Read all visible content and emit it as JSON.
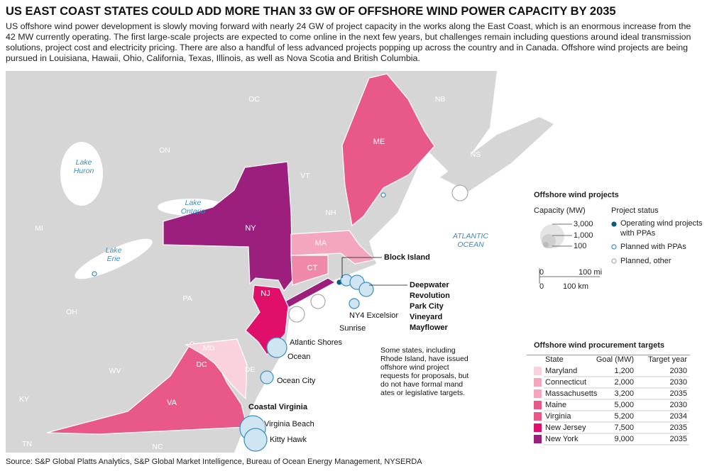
{
  "header": {
    "title": "US EAST COAST STATES COULD ADD MORE THAN 33 GW OF OFFSHORE WIND POWER CAPACITY BY 2035",
    "description": "US offshore wind power development is slowly moving forward with nearly 24 GW of project capacity in the works along the East Coast, which is an enormous increase from the 42 MW currently operating. The first large-scale projects are expected to come online in the next few years, but challenges remain including questions around ideal transmission solutions, project cost and electricity pricing. There are also a handful of less advanced projects popping up across the country and in Canada. Offshore wind projects are being pursued in Louisiana, Hawaii, Ohio, California, Texas, Illinois, as well as Nova Scotia and British Columbia."
  },
  "map_labels": [
    "OC",
    "ON",
    "NB",
    "NS",
    "Lake Huron",
    "Lake Ontario",
    "Lake Erie",
    "MI",
    "VT",
    "NH",
    "ME",
    "NY",
    "MA",
    "CT",
    "NJ",
    "PA",
    "OH",
    "MD",
    "DE",
    "DC",
    "WV",
    "VA",
    "KY",
    "TN",
    "NC",
    "ATLANTIC OCEAN"
  ],
  "projects": [
    "Block Island",
    "Deepwater",
    "Revolution",
    "Park City",
    "Vineyard",
    "Mayflower",
    "NY4 Excelsior",
    "Sunrise",
    "Atlantic Shores",
    "Ocean",
    "Ocean City",
    "Coastal Virginia",
    "Virginia Beach",
    "Kitty Hawk"
  ],
  "note": "Some states, including Rhode Island, have issued offshore wind project requests for proposals, but do not have formal mandates or legislative targets.",
  "legend": {
    "title": "Offshore wind projects",
    "capacity_title": "Capacity (MW)",
    "capacity_sizes": [
      "3,000",
      "1,000",
      "100"
    ],
    "status_title": "Project status",
    "statuses": [
      "Operating wind projects with PPAs",
      "Planned with PPAs",
      "Planned, other"
    ],
    "scale": [
      "0",
      "100 mi",
      "0",
      "100 km"
    ]
  },
  "targets": {
    "title": "Offshore wind procurement targets",
    "columns": [
      "State",
      "Goal (MW)",
      "Target year"
    ],
    "rows": [
      [
        "Maryland",
        "1,200",
        "2030"
      ],
      [
        "Connecticut",
        "2,000",
        "2030"
      ],
      [
        "Massachusetts",
        "3,200",
        "2035"
      ],
      [
        "Maine",
        "5,000",
        "2030"
      ],
      [
        "Virginia",
        "5,200",
        "2034"
      ],
      [
        "New Jersey",
        "7,500",
        "2035"
      ],
      [
        "New York",
        "9,000",
        "2035"
      ]
    ]
  },
  "source": "Source: S&P Global Platts Analytics, S&P Global Market Intelligence, Bureau of Ocean Energy Management, NYSERDA"
}
